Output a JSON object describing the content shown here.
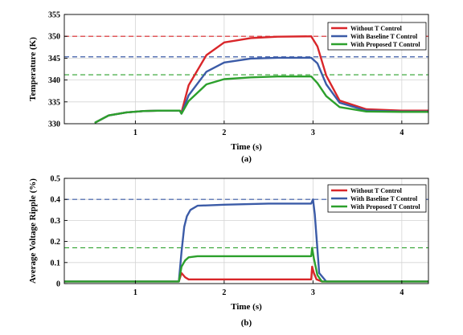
{
  "chart_data": [
    {
      "type": "line",
      "panel_label": "(a)",
      "xlabel": "Time (s)",
      "ylabel": "Temperature (K)",
      "xlim": [
        0.2,
        4.3
      ],
      "ylim": [
        330,
        355
      ],
      "xticks": [
        1,
        2,
        3,
        4
      ],
      "yticks": [
        330,
        335,
        340,
        345,
        350,
        355
      ],
      "grid": true,
      "legend_position": "top-right",
      "series": [
        {
          "name": "Without T Control",
          "color": "#d9262a",
          "dashed_limit": 350.0,
          "x": [
            0.55,
            0.7,
            0.9,
            1.1,
            1.3,
            1.5,
            1.52,
            1.6,
            1.8,
            2.0,
            2.3,
            2.6,
            2.98,
            3.05,
            3.15,
            3.3,
            3.6,
            4.0,
            4.3
          ],
          "y": [
            330.3,
            331.9,
            332.6,
            332.9,
            333.0,
            333.0,
            332.6,
            338.8,
            345.7,
            348.6,
            349.6,
            349.9,
            350.0,
            347.7,
            341.0,
            335.3,
            333.3,
            333.0,
            333.0
          ]
        },
        {
          "name": "With Baseline T Control",
          "color": "#3b5ba7",
          "dashed_limit": 345.3,
          "x": [
            0.55,
            0.7,
            0.9,
            1.1,
            1.3,
            1.5,
            1.52,
            1.6,
            1.8,
            2.0,
            2.3,
            2.6,
            2.98,
            3.05,
            3.15,
            3.3,
            3.6,
            4.0,
            4.3
          ],
          "y": [
            330.3,
            331.9,
            332.6,
            332.9,
            333.0,
            333.0,
            332.3,
            336.5,
            341.9,
            344.0,
            344.9,
            345.1,
            345.1,
            343.8,
            339.0,
            334.8,
            333.0,
            332.8,
            332.8
          ]
        },
        {
          "name": "With Proposed T Control",
          "color": "#2ca02c",
          "dashed_limit": 341.2,
          "x": [
            0.55,
            0.7,
            0.9,
            1.1,
            1.3,
            1.5,
            1.52,
            1.6,
            1.8,
            2.0,
            2.3,
            2.6,
            2.98,
            3.05,
            3.15,
            3.3,
            3.6,
            4.0,
            4.3
          ],
          "y": [
            330.3,
            331.9,
            332.6,
            332.9,
            333.0,
            333.0,
            332.3,
            335.2,
            339.0,
            340.2,
            340.6,
            340.8,
            340.8,
            339.3,
            336.3,
            333.8,
            332.8,
            332.7,
            332.7
          ]
        }
      ]
    },
    {
      "type": "line",
      "panel_label": "(b)",
      "xlabel": "Time (s)",
      "ylabel": "Average Voltage Ripple (%)",
      "xlim": [
        0.2,
        4.3
      ],
      "ylim": [
        0,
        0.5
      ],
      "xticks": [
        1,
        2,
        3,
        4
      ],
      "yticks": [
        0,
        0.1,
        0.2,
        0.3,
        0.4,
        0.5
      ],
      "grid": true,
      "legend_position": "top-right",
      "series": [
        {
          "name": "Without T Control",
          "color": "#d9262a",
          "dashed_limit": null,
          "x": [
            0.2,
            1.49,
            1.52,
            1.56,
            1.6,
            1.7,
            2.0,
            2.5,
            2.98,
            2.99,
            3.01,
            3.04,
            3.1,
            3.3,
            4.3
          ],
          "y": [
            0.01,
            0.01,
            0.05,
            0.03,
            0.02,
            0.02,
            0.02,
            0.02,
            0.02,
            0.08,
            0.05,
            0.02,
            0.01,
            0.01,
            0.01
          ]
        },
        {
          "name": "With Baseline T Control",
          "color": "#3b5ba7",
          "dashed_limit": 0.4,
          "x": [
            0.2,
            1.49,
            1.52,
            1.55,
            1.58,
            1.62,
            1.7,
            2.0,
            2.5,
            2.98,
            3.0,
            3.02,
            3.07,
            3.15,
            4.3
          ],
          "y": [
            0.01,
            0.01,
            0.15,
            0.27,
            0.32,
            0.35,
            0.37,
            0.375,
            0.38,
            0.38,
            0.4,
            0.33,
            0.05,
            0.01,
            0.01
          ]
        },
        {
          "name": "With Proposed T Control",
          "color": "#2ca02c",
          "dashed_limit": 0.17,
          "x": [
            0.2,
            1.49,
            1.52,
            1.56,
            1.6,
            1.7,
            2.0,
            2.5,
            2.98,
            2.99,
            3.01,
            3.05,
            3.1,
            3.3,
            4.3
          ],
          "y": [
            0.01,
            0.01,
            0.08,
            0.11,
            0.125,
            0.13,
            0.13,
            0.13,
            0.13,
            0.17,
            0.12,
            0.04,
            0.01,
            0.01,
            0.01
          ]
        }
      ]
    }
  ]
}
